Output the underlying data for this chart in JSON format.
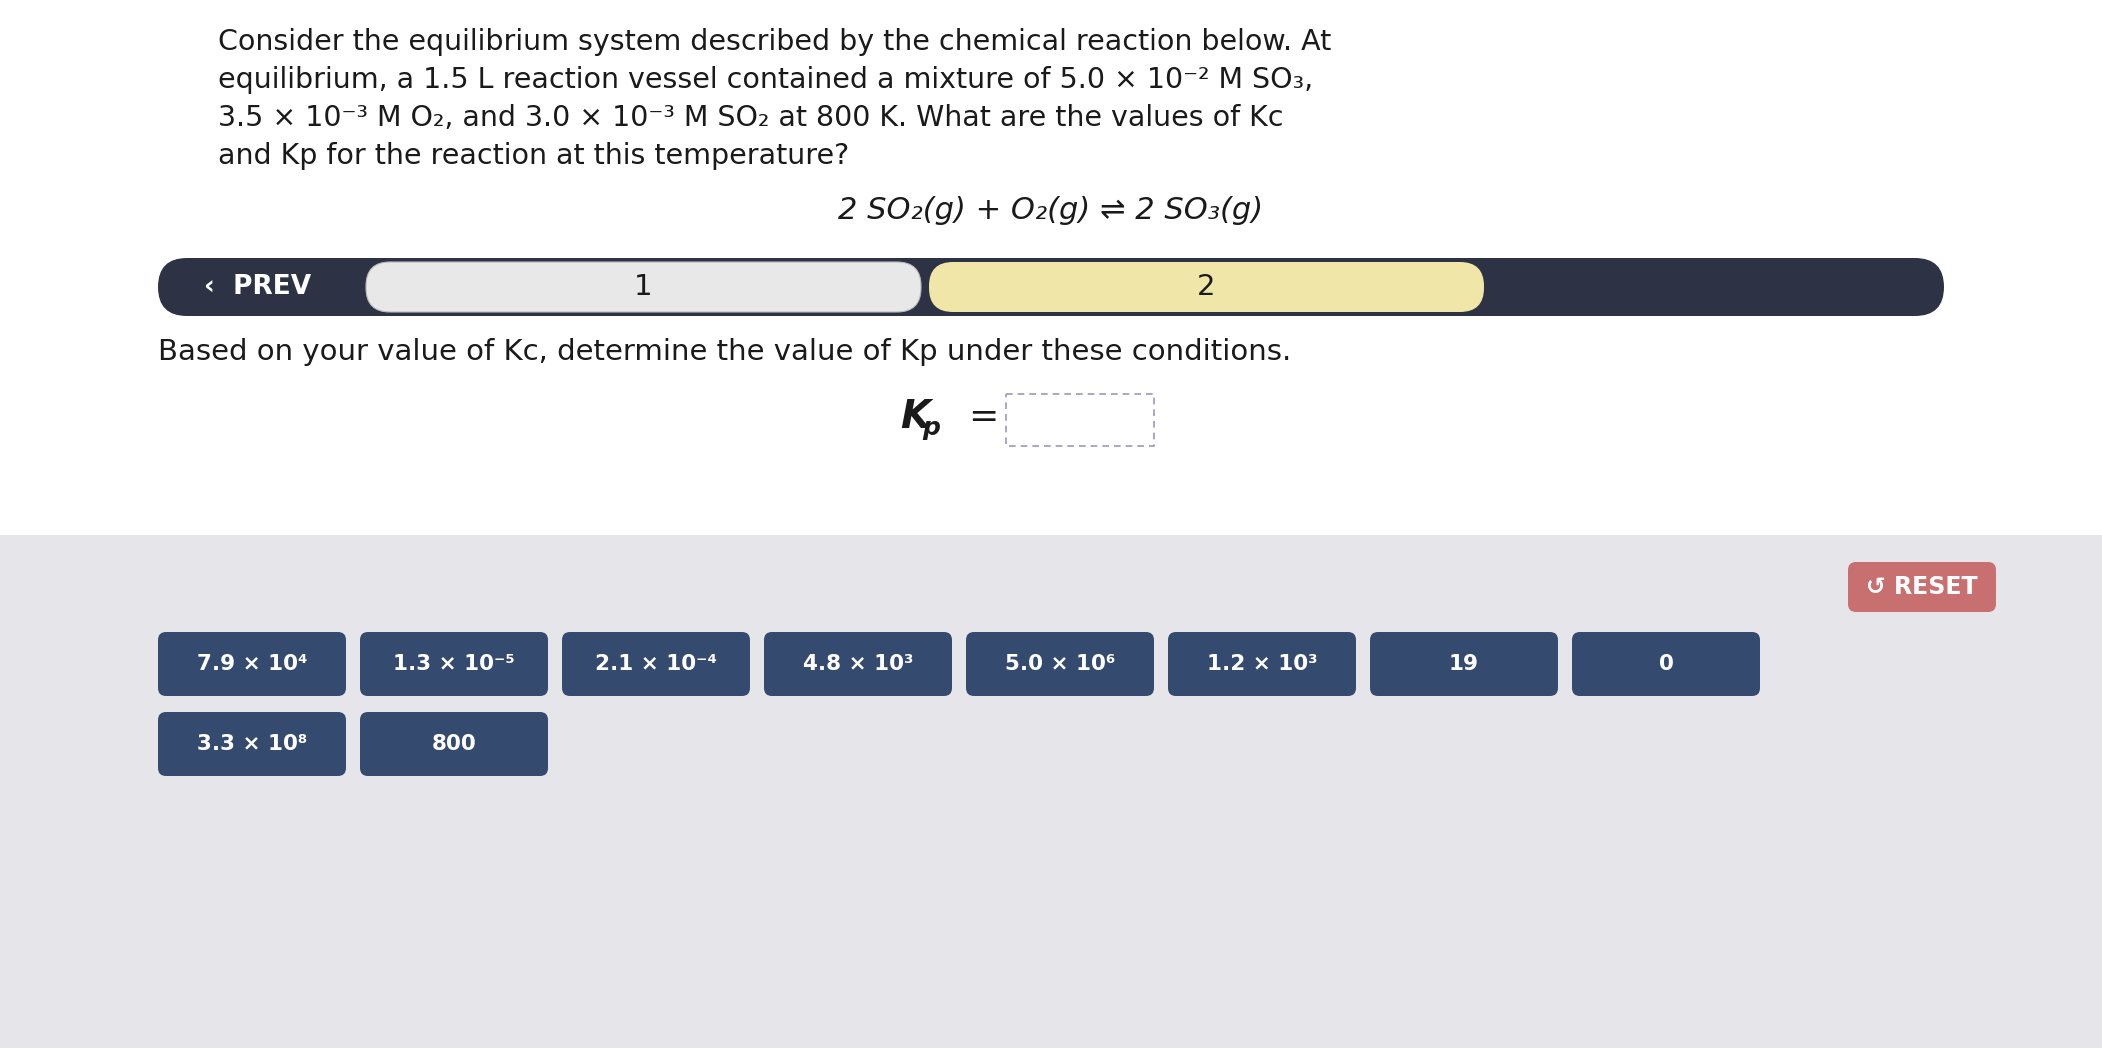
{
  "bg_color": "#ffffff",
  "bottom_bg_color": "#e5e5ea",
  "title_lines": [
    "Consider the equilibrium system described by the chemical reaction below. At",
    "equilibrium, a 1.5 L reaction vessel contained a mixture of 5.0 × 10⁻² M SO₃,",
    "3.5 × 10⁻³ M O₂, and 3.0 × 10⁻³ M SO₂ at 800 K. What are the values of Kc",
    "and Kp for the reaction at this temperature?"
  ],
  "equation": "2 SO₂(g) + O₂(g) ⇌ 2 SO₃(g)",
  "nav_bg": "#2d3245",
  "nav_tab1_color": "#e8e8e8",
  "nav_tab2_color": "#f0e6a8",
  "nav_text1": "1",
  "nav_text2": "2",
  "nav_prev_text": "‹  PREV",
  "instruction": "Based on your value of Kc, determine the value of Kp under these conditions.",
  "kp_label": "K",
  "kp_sub": "p",
  "button_color": "#344a6e",
  "button_text_color": "#ffffff",
  "buttons_row1": [
    "7.9 × 10⁴",
    "1.3 × 10⁻⁵",
    "2.1 × 10⁻⁴",
    "4.8 × 10³",
    "5.0 × 10⁶",
    "1.2 × 10³",
    "19",
    "0"
  ],
  "buttons_row2": [
    "3.3 × 10⁸",
    "800"
  ],
  "reset_color": "#c87070",
  "reset_text": "↺ RESET",
  "title_fontsize": 20.5,
  "equation_fontsize": 22,
  "instruction_fontsize": 21,
  "kp_fontsize": 28,
  "button_fontsize": 15.5,
  "nav_fontsize": 19,
  "reset_fontsize": 17
}
